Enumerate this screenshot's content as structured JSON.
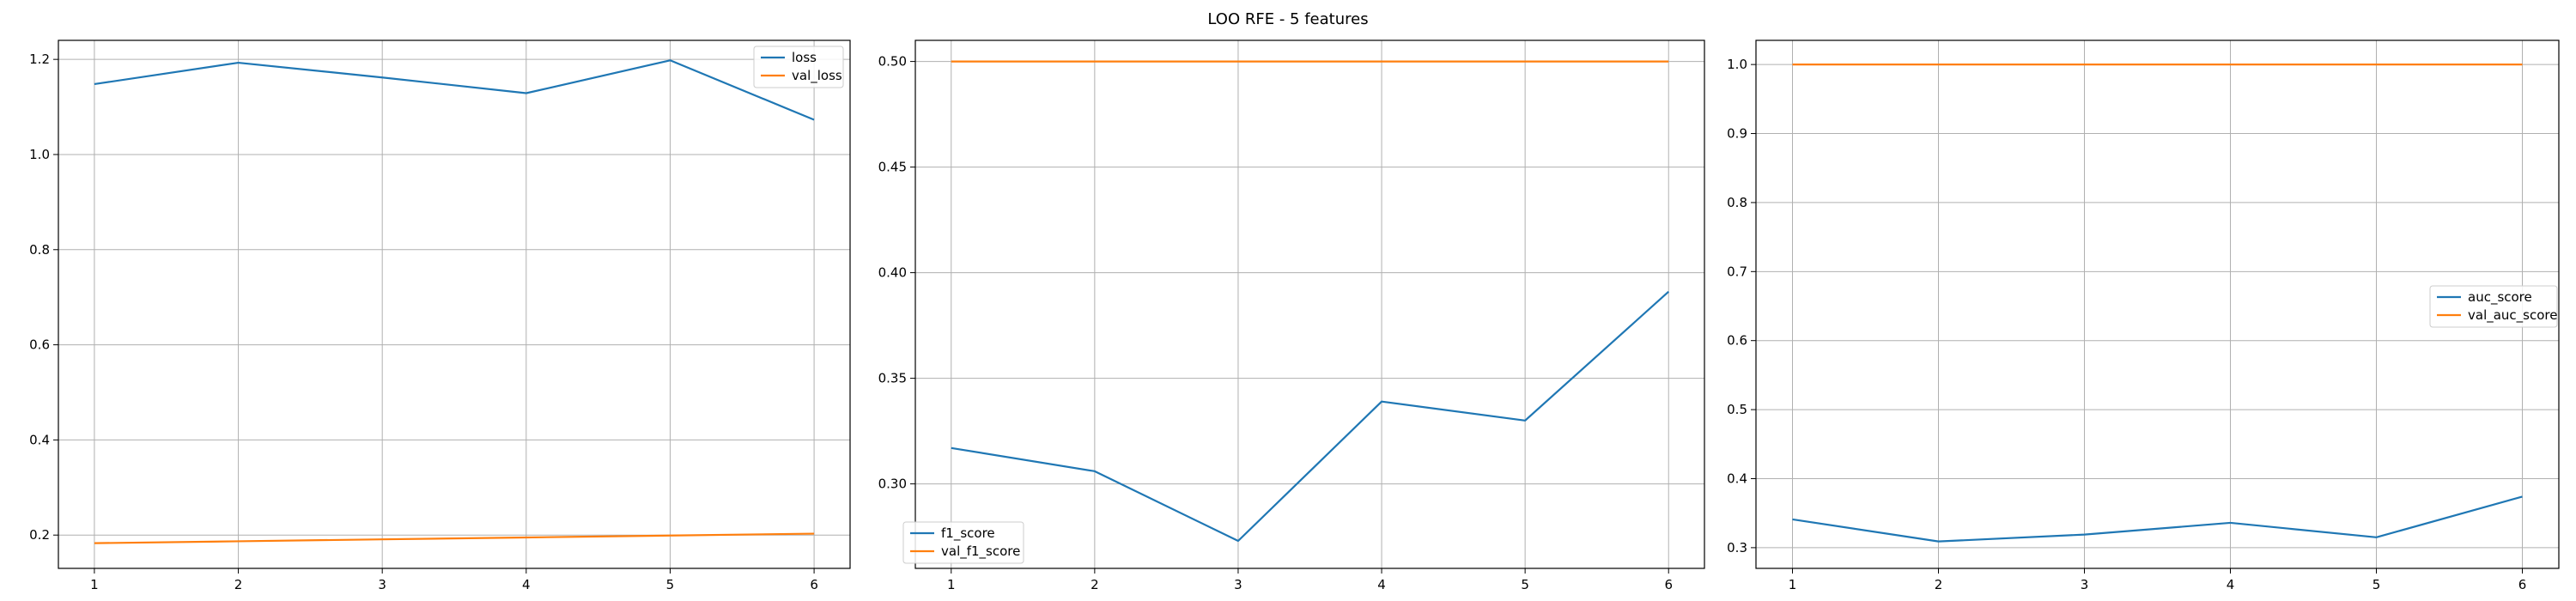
{
  "figure": {
    "suptitle": "LOO RFE - 5 features"
  },
  "colors": {
    "series_1": "#1f77b4",
    "series_2": "#ff7f0e"
  },
  "chart_data": [
    {
      "type": "line",
      "title": "",
      "xlabel": "",
      "ylabel": "",
      "x": [
        1,
        2,
        3,
        4,
        5,
        6
      ],
      "xticks": [
        1,
        2,
        3,
        4,
        5,
        6
      ],
      "xlim": [
        0.75,
        6.25
      ],
      "ylim": [
        0.13,
        1.24
      ],
      "yticks": [
        0.2,
        0.4,
        0.6,
        0.8,
        1.0,
        1.2
      ],
      "ytick_labels": [
        "0.2",
        "0.4",
        "0.6",
        "0.8",
        "1.0",
        "1.2"
      ],
      "grid": true,
      "legend_position": "upper right",
      "series": [
        {
          "name": "loss",
          "color": "#1f77b4",
          "values": [
            1.148,
            1.193,
            1.162,
            1.129,
            1.198,
            1.073
          ]
        },
        {
          "name": "val_loss",
          "color": "#ff7f0e",
          "values": [
            0.183,
            0.187,
            0.191,
            0.195,
            0.199,
            0.203
          ]
        }
      ]
    },
    {
      "type": "line",
      "title": "",
      "xlabel": "",
      "ylabel": "",
      "x": [
        1,
        2,
        3,
        4,
        5,
        6
      ],
      "xticks": [
        1,
        2,
        3,
        4,
        5,
        6
      ],
      "xlim": [
        0.75,
        6.25
      ],
      "ylim": [
        0.26,
        0.51
      ],
      "yticks": [
        0.3,
        0.35,
        0.4,
        0.45,
        0.5
      ],
      "ytick_labels": [
        "0.30",
        "0.35",
        "0.40",
        "0.45",
        "0.50"
      ],
      "grid": true,
      "legend_position": "lower left",
      "series": [
        {
          "name": "f1_score",
          "color": "#1f77b4",
          "values": [
            0.317,
            0.306,
            0.273,
            0.339,
            0.33,
            0.391
          ]
        },
        {
          "name": "val_f1_score",
          "color": "#ff7f0e",
          "values": [
            0.5,
            0.5,
            0.5,
            0.5,
            0.5,
            0.5
          ]
        }
      ]
    },
    {
      "type": "line",
      "title": "",
      "xlabel": "",
      "ylabel": "",
      "x": [
        1,
        2,
        3,
        4,
        5,
        6
      ],
      "xticks": [
        1,
        2,
        3,
        4,
        5,
        6
      ],
      "xlim": [
        0.75,
        6.25
      ],
      "ylim": [
        0.27,
        1.035
      ],
      "yticks": [
        0.3,
        0.4,
        0.5,
        0.6,
        0.7,
        0.8,
        0.9,
        1.0
      ],
      "ytick_labels": [
        "0.3",
        "0.4",
        "0.5",
        "0.6",
        "0.7",
        "0.8",
        "0.9",
        "1.0"
      ],
      "grid": true,
      "legend_position": "center right",
      "series": [
        {
          "name": "auc_score",
          "color": "#1f77b4",
          "values": [
            0.341,
            0.309,
            0.319,
            0.336,
            0.315,
            0.374
          ]
        },
        {
          "name": "val_auc_score",
          "color": "#ff7f0e",
          "values": [
            1.0,
            1.0,
            1.0,
            1.0,
            1.0,
            1.0
          ]
        }
      ]
    }
  ]
}
